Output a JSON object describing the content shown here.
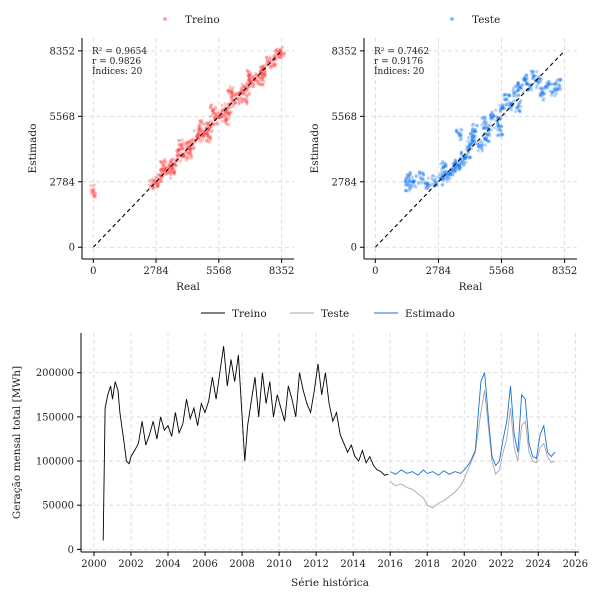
{
  "colors": {
    "treino_scatter": "#ff3b3b",
    "teste_scatter": "#0a6ff0",
    "treino_line": "#000000",
    "teste_line": "#a6a6a6",
    "estimado_line": "#1a6fd6",
    "identity_line": "#000000",
    "grid": "#d6d6d6"
  },
  "chart_data": [
    {
      "type": "scatter",
      "panel": "treino",
      "legend": "Treino",
      "legend_placement": "top-center",
      "xlabel": "Real",
      "ylabel": "Estimado",
      "xlim": [
        -500,
        8900
      ],
      "ylim": [
        -500,
        8900
      ],
      "xticks": [
        0,
        2784,
        5568,
        8352
      ],
      "yticks": [
        0,
        2784,
        5568,
        8352
      ],
      "xtick_labels": [
        "0",
        "2784",
        "5568",
        "8352"
      ],
      "ytick_labels": [
        "0",
        "2784",
        "5568",
        "8352"
      ],
      "grid": true,
      "stats": [
        "R² = 0.9654",
        "r = 0.9826",
        "Índices: 20"
      ],
      "identity_line": [
        [
          0,
          0
        ],
        [
          8352,
          8352
        ]
      ],
      "points": [
        [
          2600,
          2650
        ],
        [
          2800,
          2780
        ],
        [
          3000,
          3060
        ],
        [
          3200,
          3150
        ],
        [
          3400,
          3450
        ],
        [
          3600,
          3560
        ],
        [
          3800,
          3900
        ],
        [
          4000,
          3950
        ],
        [
          4200,
          4250
        ],
        [
          4400,
          4380
        ],
        [
          4600,
          4700
        ],
        [
          4800,
          4750
        ],
        [
          5000,
          5050
        ],
        [
          5200,
          5150
        ],
        [
          5400,
          5460
        ],
        [
          5600,
          5540
        ],
        [
          5800,
          5870
        ],
        [
          6000,
          5950
        ],
        [
          6200,
          6260
        ],
        [
          6400,
          6330
        ],
        [
          6600,
          6680
        ],
        [
          6800,
          6750
        ],
        [
          7000,
          7070
        ],
        [
          7200,
          7150
        ],
        [
          7400,
          7480
        ],
        [
          7600,
          7540
        ],
        [
          7800,
          7870
        ],
        [
          8000,
          7960
        ],
        [
          8200,
          8230
        ],
        [
          8350,
          8300
        ],
        [
          3100,
          3500
        ],
        [
          3900,
          4350
        ],
        [
          4700,
          5150
        ],
        [
          5300,
          5800
        ],
        [
          6100,
          6600
        ],
        [
          6900,
          7300
        ],
        [
          3500,
          3200
        ],
        [
          4300,
          4000
        ],
        [
          5100,
          4700
        ],
        [
          5900,
          5450
        ],
        [
          6700,
          6300
        ],
        [
          7500,
          7150
        ],
        [
          0,
          2400
        ]
      ]
    },
    {
      "type": "scatter",
      "panel": "teste",
      "legend": "Teste",
      "legend_placement": "top-center",
      "xlabel": "Real",
      "ylabel": "Estimado",
      "xlim": [
        -500,
        8900
      ],
      "ylim": [
        -500,
        8900
      ],
      "xticks": [
        0,
        2784,
        5568,
        8352
      ],
      "yticks": [
        0,
        2784,
        5568,
        8352
      ],
      "xtick_labels": [
        "0",
        "2784",
        "5568",
        "8352"
      ],
      "ytick_labels": [
        "0",
        "2784",
        "5568",
        "8352"
      ],
      "grid": true,
      "stats": [
        "R² = 0.7462",
        "r = 0.9176",
        "Índices: 20"
      ],
      "identity_line": [
        [
          0,
          0
        ],
        [
          8352,
          8352
        ]
      ],
      "points": [
        [
          1450,
          2950
        ],
        [
          1450,
          2650
        ],
        [
          1700,
          2800
        ],
        [
          2000,
          2950
        ],
        [
          2300,
          2700
        ],
        [
          2600,
          2850
        ],
        [
          2900,
          2900
        ],
        [
          3100,
          3050
        ],
        [
          3300,
          3150
        ],
        [
          3500,
          3350
        ],
        [
          3600,
          3550
        ],
        [
          3800,
          3600
        ],
        [
          3900,
          3850
        ],
        [
          4100,
          4050
        ],
        [
          4200,
          4400
        ],
        [
          4300,
          4700
        ],
        [
          4400,
          5000
        ],
        [
          4600,
          4300
        ],
        [
          4800,
          5300
        ],
        [
          5000,
          5000
        ],
        [
          5200,
          5600
        ],
        [
          5400,
          5300
        ],
        [
          5600,
          5900
        ],
        [
          5800,
          6300
        ],
        [
          6000,
          6100
        ],
        [
          6200,
          6600
        ],
        [
          6400,
          6800
        ],
        [
          6600,
          7100
        ],
        [
          6800,
          6900
        ],
        [
          7000,
          7300
        ],
        [
          7200,
          7000
        ],
        [
          7400,
          6500
        ],
        [
          7600,
          6800
        ],
        [
          7900,
          6700
        ],
        [
          8100,
          6900
        ],
        [
          3700,
          4800
        ],
        [
          4900,
          4600
        ],
        [
          5500,
          5000
        ],
        [
          6300,
          6000
        ],
        [
          3000,
          3400
        ]
      ]
    },
    {
      "type": "line",
      "panel": "time_series",
      "xlabel": "Série histórica",
      "ylabel": "Geração mensal total [MWh]",
      "xlim": [
        1999.3,
        2026.2
      ],
      "ylim": [
        -3000,
        245000
      ],
      "xticks": [
        2000,
        2002,
        2004,
        2006,
        2008,
        2010,
        2012,
        2014,
        2016,
        2018,
        2020,
        2022,
        2024,
        2026
      ],
      "xtick_labels": [
        "2000",
        "2002",
        "2004",
        "2006",
        "2008",
        "2010",
        "2012",
        "2014",
        "2016",
        "2018",
        "2020",
        "2022",
        "2024",
        "2026"
      ],
      "yticks": [
        0,
        50000,
        100000,
        150000,
        200000
      ],
      "ytick_labels": [
        "0",
        "50000",
        "100000",
        "150000",
        "200000"
      ],
      "grid": true,
      "legend_placement": "top-center",
      "series": [
        {
          "name": "Treino",
          "color_key": "treino_line",
          "x": [
            2000.5,
            2000.6,
            2000.75,
            2000.9,
            2001.0,
            2001.15,
            2001.3,
            2001.4,
            2001.5,
            2001.6,
            2001.75,
            2001.9,
            2002.0,
            2002.2,
            2002.4,
            2002.6,
            2002.8,
            2003.0,
            2003.2,
            2003.4,
            2003.6,
            2003.8,
            2004.0,
            2004.2,
            2004.4,
            2004.6,
            2004.8,
            2005.0,
            2005.2,
            2005.4,
            2005.6,
            2005.8,
            2006.0,
            2006.2,
            2006.4,
            2006.6,
            2006.8,
            2007.0,
            2007.2,
            2007.4,
            2007.6,
            2007.8,
            2008.0,
            2008.15,
            2008.3,
            2008.5,
            2008.7,
            2008.9,
            2009.1,
            2009.3,
            2009.5,
            2009.7,
            2009.9,
            2010.1,
            2010.3,
            2010.5,
            2010.7,
            2010.9,
            2011.1,
            2011.3,
            2011.5,
            2011.7,
            2011.9,
            2012.1,
            2012.3,
            2012.5,
            2012.7,
            2012.9,
            2013.1,
            2013.3,
            2013.5,
            2013.7,
            2013.9,
            2014.1,
            2014.3,
            2014.5,
            2014.7,
            2014.9,
            2015.1,
            2015.3,
            2015.5,
            2015.7,
            2015.9
          ],
          "y": [
            10000,
            160000,
            175000,
            185000,
            170000,
            190000,
            180000,
            155000,
            140000,
            125000,
            100000,
            97000,
            105000,
            112000,
            120000,
            145000,
            118000,
            130000,
            145000,
            125000,
            150000,
            135000,
            140000,
            128000,
            155000,
            132000,
            142000,
            170000,
            148000,
            160000,
            140000,
            165000,
            155000,
            168000,
            195000,
            170000,
            200000,
            230000,
            185000,
            215000,
            190000,
            220000,
            150000,
            100000,
            140000,
            168000,
            195000,
            150000,
            200000,
            165000,
            190000,
            150000,
            175000,
            160000,
            145000,
            185000,
            170000,
            150000,
            200000,
            180000,
            165000,
            155000,
            180000,
            210000,
            175000,
            200000,
            165000,
            145000,
            155000,
            130000,
            120000,
            110000,
            118000,
            105000,
            100000,
            112000,
            98000,
            105000,
            95000,
            90000,
            88000,
            84000,
            85000
          ]
        },
        {
          "name": "Teste",
          "color_key": "teste_line",
          "x": [
            2016.0,
            2016.3,
            2016.6,
            2016.9,
            2017.2,
            2017.5,
            2017.8,
            2018.0,
            2018.3,
            2018.6,
            2018.9,
            2019.2,
            2019.5,
            2019.8,
            2020.0,
            2020.3,
            2020.6,
            2020.9,
            2021.1,
            2021.3,
            2021.5,
            2021.7,
            2021.9,
            2022.1,
            2022.3,
            2022.5,
            2022.7,
            2022.9,
            2023.1,
            2023.3,
            2023.5,
            2023.7,
            2023.9,
            2024.1,
            2024.3,
            2024.5,
            2024.7,
            2024.9
          ],
          "y": [
            77000,
            72000,
            74000,
            70000,
            68000,
            63000,
            58000,
            50000,
            47000,
            52000,
            55000,
            60000,
            65000,
            72000,
            80000,
            95000,
            110000,
            155000,
            180000,
            140000,
            100000,
            85000,
            90000,
            110000,
            125000,
            160000,
            115000,
            100000,
            140000,
            145000,
            110000,
            100000,
            98000,
            115000,
            120000,
            105000,
            98000,
            100000
          ]
        },
        {
          "name": "Estimado",
          "color_key": "estimado_line",
          "x": [
            2016.0,
            2016.3,
            2016.6,
            2016.9,
            2017.2,
            2017.5,
            2017.8,
            2018.0,
            2018.3,
            2018.6,
            2018.9,
            2019.2,
            2019.5,
            2019.8,
            2020.0,
            2020.3,
            2020.6,
            2020.9,
            2021.1,
            2021.3,
            2021.5,
            2021.7,
            2021.9,
            2022.1,
            2022.3,
            2022.5,
            2022.7,
            2022.9,
            2023.1,
            2023.3,
            2023.5,
            2023.7,
            2023.9,
            2024.1,
            2024.3,
            2024.5,
            2024.7,
            2024.9
          ],
          "y": [
            88000,
            85000,
            90000,
            86000,
            88000,
            84000,
            90000,
            86000,
            88000,
            84000,
            89000,
            85000,
            88000,
            86000,
            90000,
            98000,
            112000,
            190000,
            200000,
            150000,
            105000,
            95000,
            100000,
            125000,
            145000,
            185000,
            130000,
            110000,
            175000,
            170000,
            120000,
            105000,
            103000,
            130000,
            140000,
            110000,
            105000,
            110000
          ]
        }
      ]
    }
  ]
}
